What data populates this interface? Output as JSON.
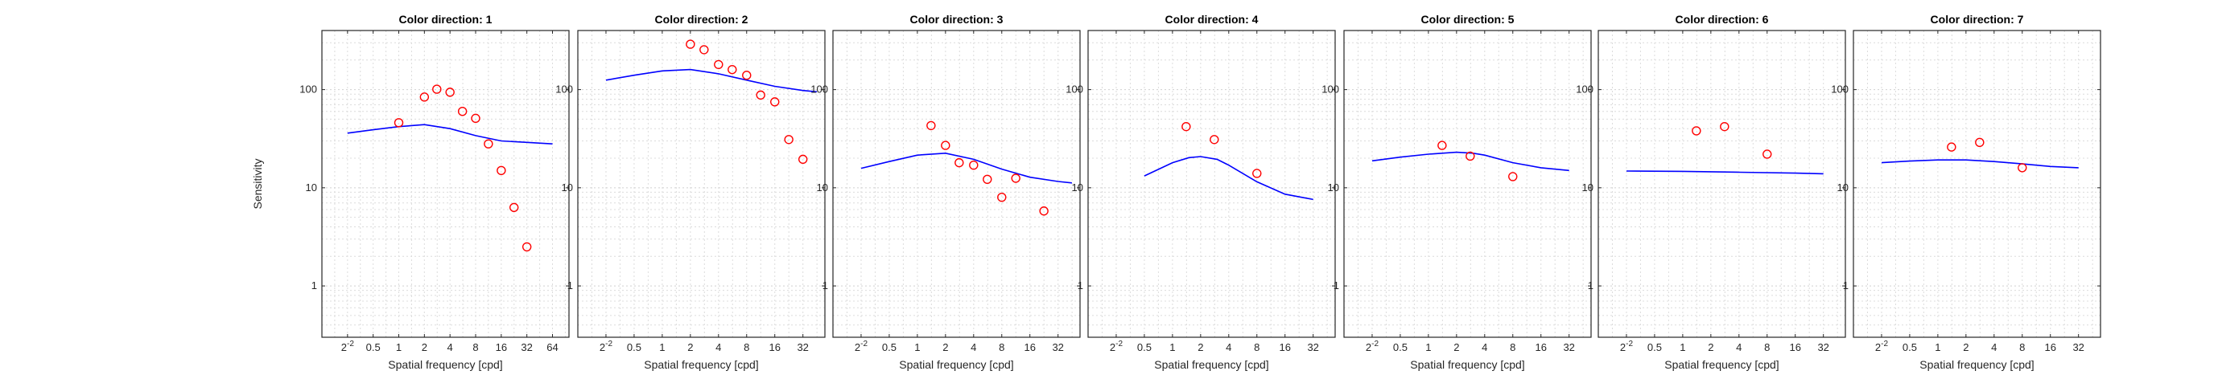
{
  "chart_data": [
    {
      "type": "line",
      "title": "Color direction: 1",
      "xlabel": "Spatial frequency [cpd]",
      "ylabel": "Sensitivity",
      "xscale": "log2",
      "yscale": "log10",
      "xlim": [
        0.125,
        100
      ],
      "ylim": [
        0.3,
        400
      ],
      "xticks": [
        0.25,
        0.5,
        1,
        2,
        4,
        8,
        16,
        32,
        64
      ],
      "xtick_labels": [
        "2^-2",
        "0.5",
        "1",
        "2",
        "4",
        "8",
        "16",
        "32",
        "64"
      ],
      "yticks": [
        1,
        10,
        100
      ],
      "ytick_labels": [
        "1",
        "10",
        "100"
      ],
      "grid": true,
      "series": [
        {
          "kind": "model",
          "color": "#0000ff",
          "x": [
            0.25,
            0.5,
            1,
            2,
            4,
            8,
            16,
            32,
            64
          ],
          "y": [
            36,
            39,
            42,
            44,
            40,
            34,
            30,
            29,
            28
          ]
        },
        {
          "kind": "measured",
          "color": "#ff0000",
          "x": [
            1,
            2,
            2.8,
            4,
            5.6,
            8,
            11.3,
            16,
            22.6,
            32
          ],
          "y": [
            46,
            84,
            101,
            94,
            60,
            51,
            28,
            15,
            6.3,
            2.5
          ]
        }
      ]
    },
    {
      "type": "line",
      "title": "Color direction: 2",
      "xlabel": "Spatial frequency [cpd]",
      "ylabel": "",
      "xscale": "log2",
      "yscale": "log10",
      "xlim": [
        0.125,
        55
      ],
      "ylim": [
        0.3,
        400
      ],
      "xticks": [
        0.25,
        0.5,
        1,
        2,
        4,
        8,
        16,
        32
      ],
      "xtick_labels": [
        "2^-2",
        "0.5",
        "1",
        "2",
        "4",
        "8",
        "16",
        "32"
      ],
      "yticks": [
        1,
        10,
        100
      ],
      "ytick_labels": [
        "1",
        "10",
        "100"
      ],
      "grid": true,
      "series": [
        {
          "kind": "model",
          "color": "#0000ff",
          "x": [
            0.25,
            0.5,
            1,
            2,
            4,
            8,
            16,
            32,
            45
          ],
          "y": [
            125,
            140,
            155,
            160,
            145,
            125,
            108,
            98,
            95
          ]
        },
        {
          "kind": "measured",
          "color": "#ff0000",
          "x": [
            2,
            2.8,
            4,
            5.6,
            8,
            11.3,
            16,
            22.6,
            32
          ],
          "y": [
            290,
            255,
            180,
            160,
            140,
            88,
            75,
            31,
            19.5
          ]
        }
      ]
    },
    {
      "type": "line",
      "title": "Color direction: 3",
      "xlabel": "Spatial frequency [cpd]",
      "ylabel": "",
      "xscale": "log2",
      "yscale": "log10",
      "xlim": [
        0.125,
        55
      ],
      "ylim": [
        0.3,
        400
      ],
      "xticks": [
        0.25,
        0.5,
        1,
        2,
        4,
        8,
        16,
        32
      ],
      "xtick_labels": [
        "2^-2",
        "0.5",
        "1",
        "2",
        "4",
        "8",
        "16",
        "32"
      ],
      "yticks": [
        1,
        10,
        100
      ],
      "ytick_labels": [
        "1",
        "10",
        "100"
      ],
      "grid": true,
      "series": [
        {
          "kind": "model",
          "color": "#0000ff",
          "x": [
            0.25,
            0.5,
            1,
            2,
            4,
            8,
            16,
            32,
            45
          ],
          "y": [
            15.8,
            18.5,
            21.5,
            22.5,
            19.5,
            15.5,
            12.8,
            11.6,
            11.2
          ]
        },
        {
          "kind": "measured",
          "color": "#ff0000",
          "x": [
            1.4,
            2,
            2.8,
            4,
            5.6,
            8,
            11.3,
            22.6
          ],
          "y": [
            43,
            27,
            18,
            17,
            12.2,
            8,
            12.5,
            5.8
          ]
        }
      ]
    },
    {
      "type": "line",
      "title": "Color direction: 4",
      "xlabel": "Spatial frequency [cpd]",
      "ylabel": "",
      "xscale": "log2",
      "yscale": "log10",
      "xlim": [
        0.125,
        55
      ],
      "ylim": [
        0.3,
        400
      ],
      "xticks": [
        0.25,
        0.5,
        1,
        2,
        4,
        8,
        16,
        32
      ],
      "xtick_labels": [
        "2^-2",
        "0.5",
        "1",
        "2",
        "4",
        "8",
        "16",
        "32"
      ],
      "yticks": [
        1,
        10,
        100
      ],
      "ytick_labels": [
        "1",
        "10",
        "100"
      ],
      "grid": true,
      "series": [
        {
          "kind": "model",
          "color": "#0000ff",
          "x": [
            0.5,
            1,
            1.5,
            2,
            3,
            4,
            8,
            16,
            24,
            32
          ],
          "y": [
            13.2,
            18,
            20.3,
            20.8,
            19.5,
            17,
            11.5,
            8.6,
            8,
            7.6
          ]
        },
        {
          "kind": "measured",
          "color": "#ff0000",
          "x": [
            1.4,
            2.8,
            8
          ],
          "y": [
            42,
            31,
            14
          ]
        }
      ]
    },
    {
      "type": "line",
      "title": "Color direction: 5",
      "xlabel": "Spatial frequency [cpd]",
      "ylabel": "",
      "xscale": "log2",
      "yscale": "log10",
      "xlim": [
        0.125,
        55
      ],
      "ylim": [
        0.3,
        400
      ],
      "xticks": [
        0.25,
        0.5,
        1,
        2,
        4,
        8,
        16,
        32
      ],
      "xtick_labels": [
        "2^-2",
        "0.5",
        "1",
        "2",
        "4",
        "8",
        "16",
        "32"
      ],
      "yticks": [
        1,
        10,
        100
      ],
      "ytick_labels": [
        "1",
        "10",
        "100"
      ],
      "grid": true,
      "series": [
        {
          "kind": "model",
          "color": "#0000ff",
          "x": [
            0.25,
            0.5,
            1,
            2,
            3,
            4,
            8,
            16,
            32
          ],
          "y": [
            18.8,
            20.5,
            22,
            23,
            22.5,
            21.5,
            18,
            16,
            15
          ]
        },
        {
          "kind": "measured",
          "color": "#ff0000",
          "x": [
            1.4,
            2.8,
            8
          ],
          "y": [
            27,
            21,
            13
          ]
        }
      ]
    },
    {
      "type": "line",
      "title": "Color direction: 6",
      "xlabel": "Spatial frequency [cpd]",
      "ylabel": "",
      "xscale": "log2",
      "yscale": "log10",
      "xlim": [
        0.125,
        55
      ],
      "ylim": [
        0.3,
        400
      ],
      "xticks": [
        0.25,
        0.5,
        1,
        2,
        4,
        8,
        16,
        32
      ],
      "xtick_labels": [
        "2^-2",
        "0.5",
        "1",
        "2",
        "4",
        "8",
        "16",
        "32"
      ],
      "yticks": [
        1,
        10,
        100
      ],
      "ytick_labels": [
        "1",
        "10",
        "100"
      ],
      "grid": true,
      "series": [
        {
          "kind": "model",
          "color": "#0000ff",
          "x": [
            0.25,
            1,
            4,
            16,
            32
          ],
          "y": [
            14.8,
            14.7,
            14.4,
            14.1,
            13.9
          ]
        },
        {
          "kind": "measured",
          "color": "#ff0000",
          "x": [
            1.4,
            2.8,
            8
          ],
          "y": [
            38,
            42,
            22
          ]
        }
      ]
    },
    {
      "type": "line",
      "title": "Color direction: 7",
      "xlabel": "Spatial frequency [cpd]",
      "ylabel": "",
      "xscale": "log2",
      "yscale": "log10",
      "xlim": [
        0.125,
        55
      ],
      "ylim": [
        0.3,
        400
      ],
      "xticks": [
        0.25,
        0.5,
        1,
        2,
        4,
        8,
        16,
        32
      ],
      "xtick_labels": [
        "2^-2",
        "0.5",
        "1",
        "2",
        "4",
        "8",
        "16",
        "32"
      ],
      "yticks": [
        1,
        10,
        100
      ],
      "ytick_labels": [
        "1",
        "10",
        "100"
      ],
      "grid": true,
      "series": [
        {
          "kind": "model",
          "color": "#0000ff",
          "x": [
            0.25,
            0.5,
            1,
            2,
            4,
            8,
            16,
            32
          ],
          "y": [
            18,
            18.7,
            19.2,
            19.2,
            18.5,
            17.5,
            16.5,
            16
          ]
        },
        {
          "kind": "measured",
          "color": "#ff0000",
          "x": [
            1.4,
            2.8,
            8
          ],
          "y": [
            26,
            29,
            16
          ]
        }
      ]
    }
  ]
}
